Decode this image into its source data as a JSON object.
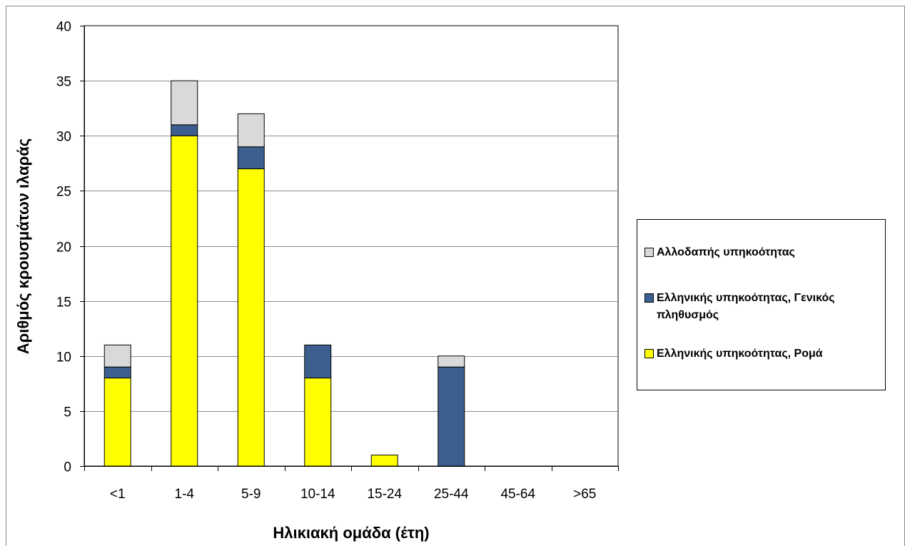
{
  "chart_data": {
    "type": "bar",
    "stacked": true,
    "categories": [
      "<1",
      "1-4",
      "5-9",
      "10-14",
      "15-24",
      "25-44",
      "45-64",
      ">65"
    ],
    "series": [
      {
        "name": "Ελληνικής υπηκοότητας, Ρομά",
        "color": "#ffff00",
        "values": [
          8,
          30,
          27,
          8,
          1,
          0,
          0,
          0
        ]
      },
      {
        "name": "Ελληνικής υπηκοότητας, Γενικός πληθυσμός",
        "color": "#3c5f8f",
        "values": [
          1,
          1,
          2,
          3,
          0,
          9,
          0,
          0
        ]
      },
      {
        "name": "Αλλοδαπής υπηκοότητας",
        "color": "#d9d9d9",
        "values": [
          2,
          4,
          3,
          0,
          0,
          1,
          0,
          0
        ]
      }
    ],
    "legend_order": [
      2,
      1,
      0
    ],
    "yticks": [
      "0",
      "5",
      "10",
      "15",
      "20",
      "25",
      "30",
      "35",
      "40"
    ],
    "ylim": [
      0,
      40
    ],
    "xlabel": "Ηλικιακή ομάδα (έτη)",
    "ylabel": "Αριθμός κρουσμάτων ιλαράς",
    "grid": true,
    "legend_position": "right"
  }
}
